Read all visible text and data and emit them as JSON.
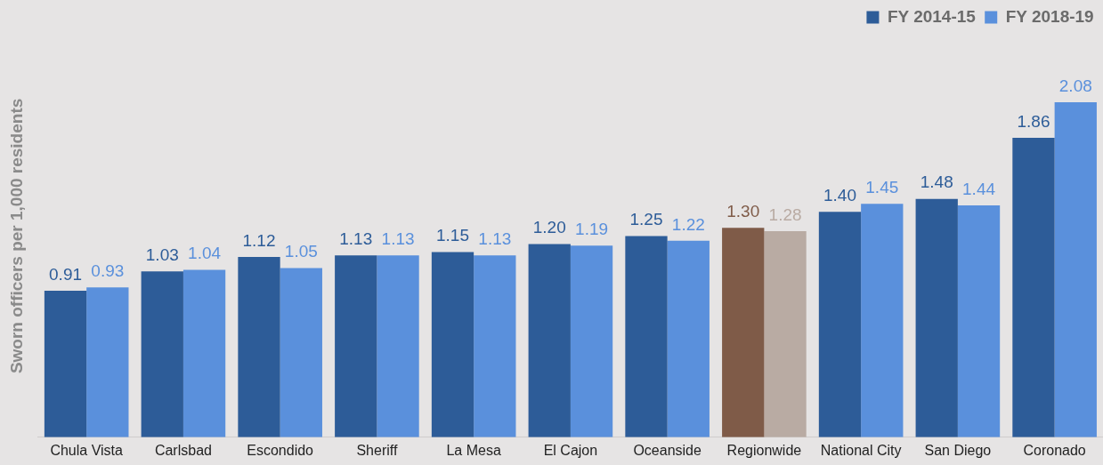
{
  "chart_data": {
    "type": "bar",
    "ylabel": "Sworn officers per 1,000 residents",
    "categories": [
      "Chula Vista",
      "Carlsbad",
      "Escondido",
      "Sheriff",
      "La Mesa",
      "El Cajon",
      "Oceanside",
      "Regionwide",
      "National City",
      "San Diego",
      "Coronado"
    ],
    "series": [
      {
        "name": "FY 2014-15",
        "color": "#2d5c98",
        "colors": [
          "#2d5c98",
          "#2d5c98",
          "#2d5c98",
          "#2d5c98",
          "#2d5c98",
          "#2d5c98",
          "#2d5c98",
          "#7f5b48",
          "#2d5c98",
          "#2d5c98",
          "#2d5c98"
        ],
        "values": [
          0.91,
          1.03,
          1.12,
          1.13,
          1.15,
          1.2,
          1.25,
          1.3,
          1.4,
          1.48,
          1.86
        ],
        "value_labels": [
          "0.91",
          "1.03",
          "1.12",
          "1.13",
          "1.15",
          "1.20",
          "1.25",
          "1.30",
          "1.40",
          "1.48",
          "1.86"
        ]
      },
      {
        "name": "FY 2018-19",
        "color": "#5a90dc",
        "colors": [
          "#5a90dc",
          "#5a90dc",
          "#5a90dc",
          "#5a90dc",
          "#5a90dc",
          "#5a90dc",
          "#5a90dc",
          "#b9aba3",
          "#5a90dc",
          "#5a90dc",
          "#5a90dc"
        ],
        "values": [
          0.93,
          1.04,
          1.05,
          1.13,
          1.13,
          1.19,
          1.22,
          1.28,
          1.45,
          1.44,
          2.08
        ],
        "value_labels": [
          "0.93",
          "1.04",
          "1.05",
          "1.13",
          "1.13",
          "1.19",
          "1.22",
          "1.28",
          "1.45",
          "1.44",
          "2.08"
        ]
      }
    ],
    "grid": false,
    "legend": "top right",
    "tick_labels": "x"
  }
}
